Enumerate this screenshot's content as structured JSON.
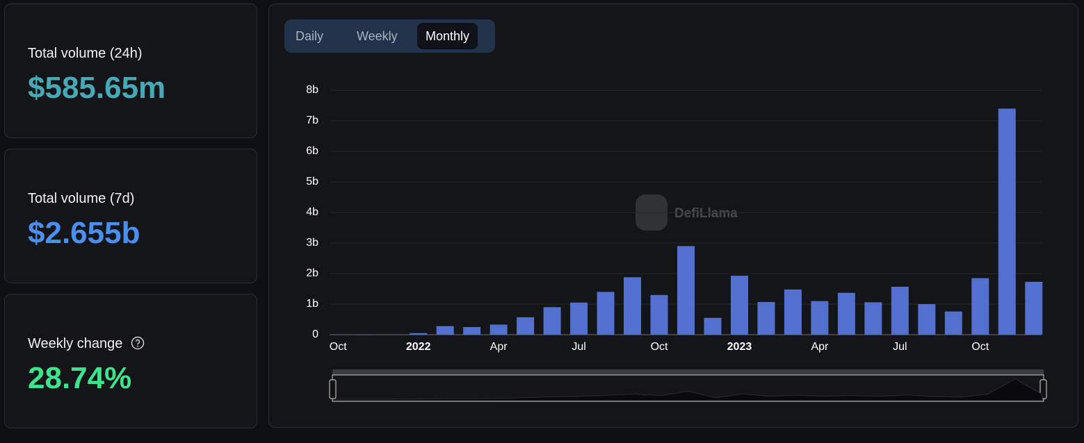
{
  "cards": [
    {
      "title": "Total volume (24h)",
      "value": "$585.65m"
    },
    {
      "title": "Total volume (7d)",
      "value": "$2.655b"
    },
    {
      "title": "Weekly change",
      "value": "28.74%"
    }
  ],
  "tabs": [
    "Daily",
    "Weekly",
    "Monthly"
  ],
  "watermark": "DefiLlama",
  "chart_data": {
    "type": "bar",
    "color": "#5470cf",
    "grid": true,
    "categories": [
      "Oct",
      null,
      null,
      "2022",
      null,
      null,
      "Apr",
      null,
      null,
      "Jul",
      null,
      null,
      "Oct",
      null,
      null,
      "2023",
      null,
      null,
      "Apr",
      null,
      null,
      "Jul",
      null,
      null,
      "Oct",
      null,
      null
    ],
    "values": [
      0.005,
      0.01,
      0.005,
      0.05,
      0.28,
      0.25,
      0.33,
      0.57,
      0.9,
      1.05,
      1.4,
      1.88,
      1.3,
      2.9,
      0.55,
      1.93,
      1.07,
      1.48,
      1.1,
      1.37,
      1.06,
      1.57,
      1.0,
      0.76,
      1.85,
      7.4,
      1.73
    ],
    "ylim": [
      0,
      8
    ],
    "yticks": [
      0,
      {
        "value": 1,
        "label": "1b"
      },
      {
        "value": 2,
        "label": "2b"
      },
      {
        "value": 3,
        "label": "3b"
      },
      {
        "value": 4,
        "label": "4b"
      },
      {
        "value": 5,
        "label": "5b"
      },
      {
        "value": 6,
        "label": "6b"
      },
      {
        "value": 7,
        "label": "7b"
      },
      {
        "value": 8,
        "label": "8b"
      }
    ]
  }
}
